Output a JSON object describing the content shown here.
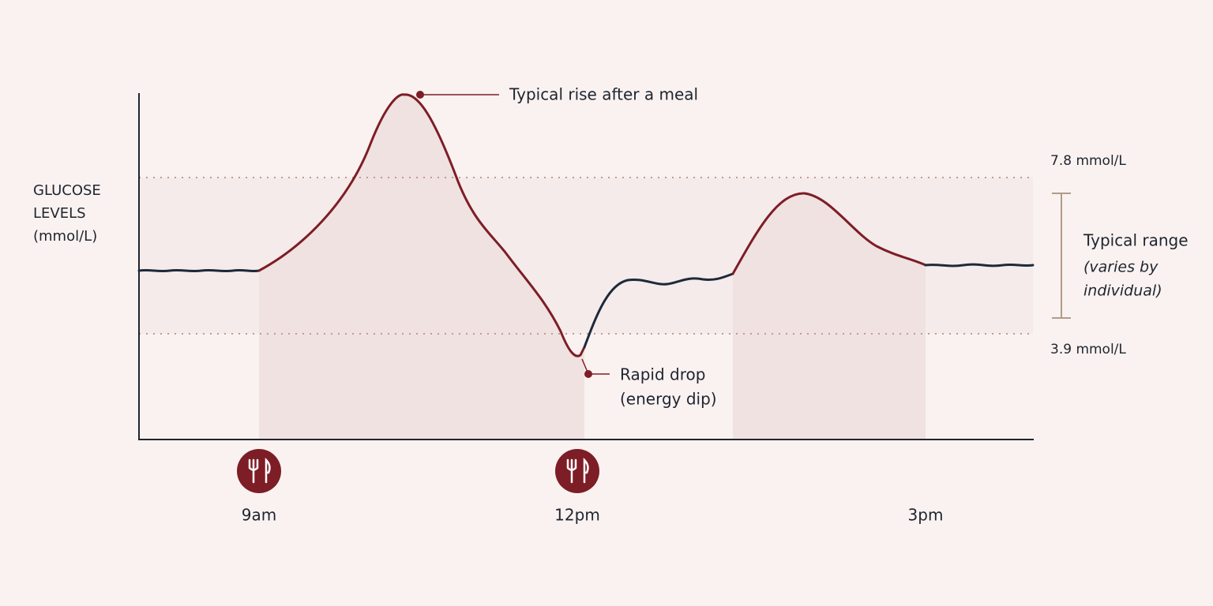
{
  "y_axis_label": [
    "GLUCOSE",
    "LEVELS",
    "(mmol/L)"
  ],
  "annotations": {
    "rise": "Typical rise after a meal",
    "drop": [
      "Rapid drop",
      "(energy dip)"
    ]
  },
  "thresholds": {
    "upper": "7.8 mmol/L",
    "lower": "3.9 mmol/L"
  },
  "range": {
    "title": "Typical range",
    "note": [
      "(varies by",
      "individual)"
    ]
  },
  "times": [
    "9am",
    "12pm",
    "3pm"
  ]
}
